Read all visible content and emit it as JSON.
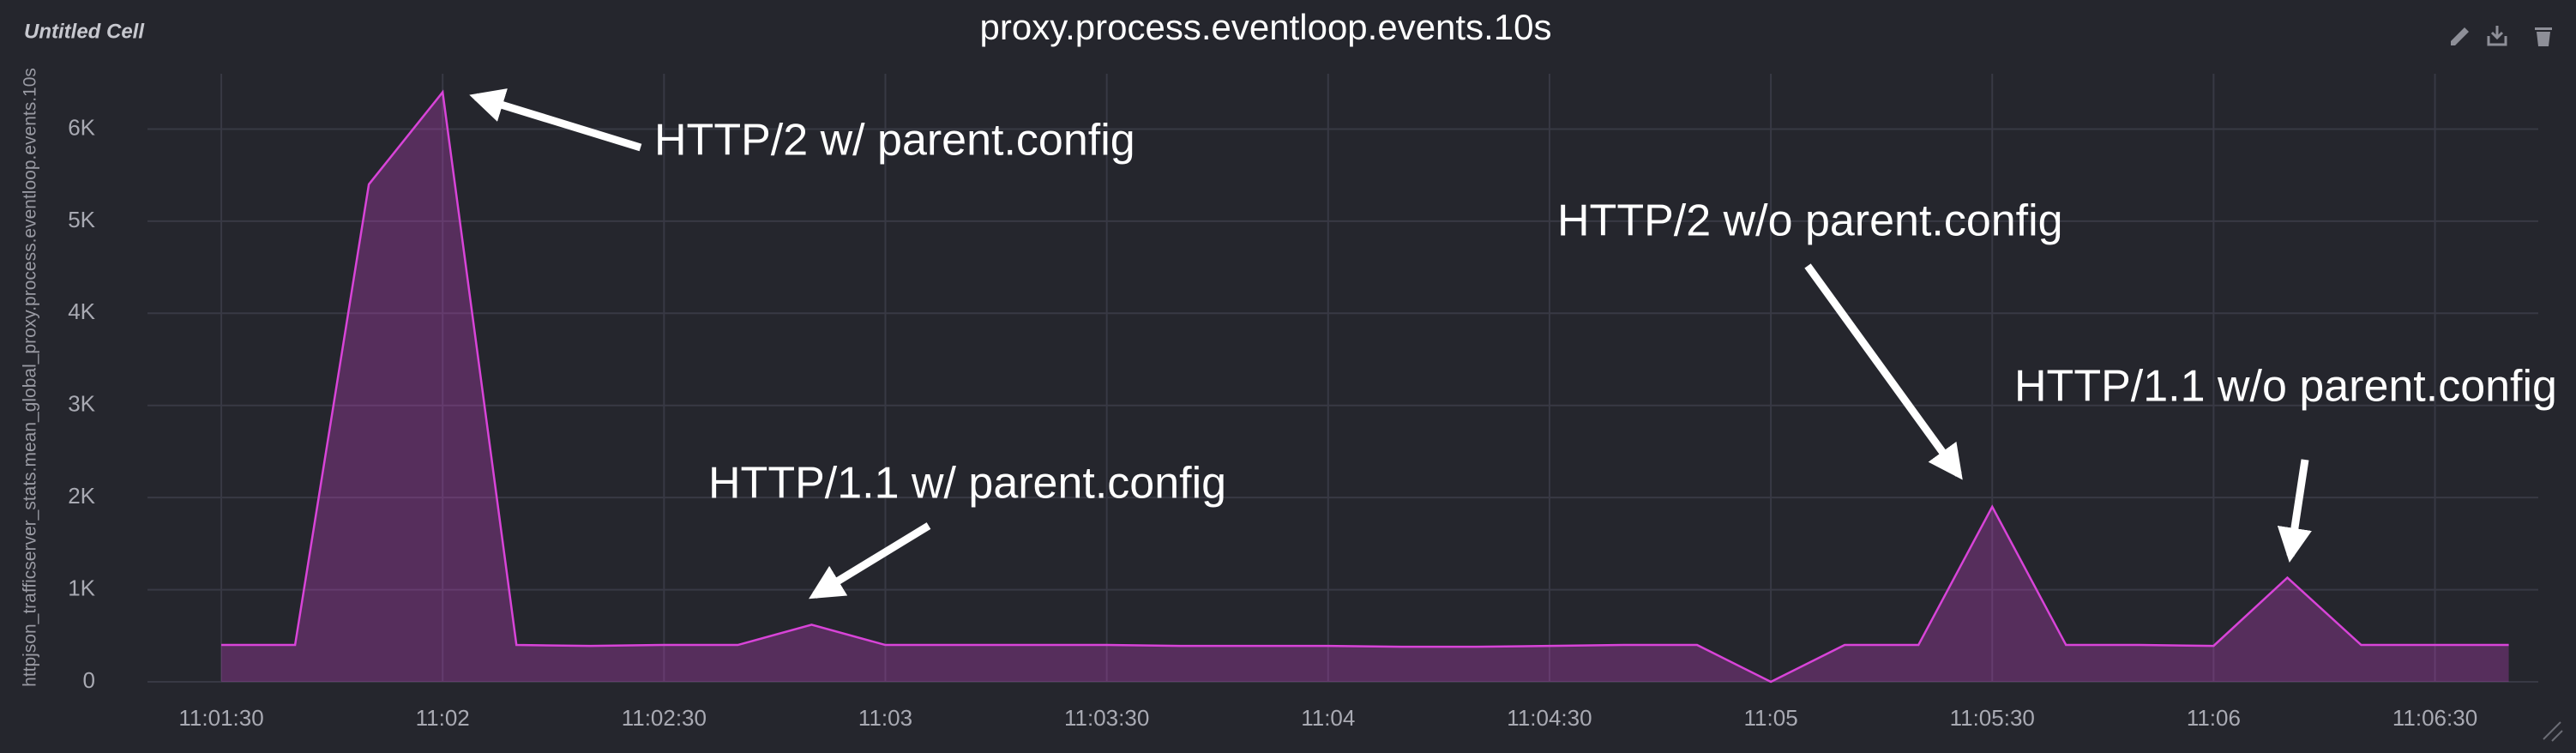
{
  "cell_title": "Untitled Cell",
  "chart_data": {
    "type": "area",
    "title": "proxy.process.eventloop.events.10s",
    "y_label": "httpjson_trafficserver_stats.mean_global_proxy.process.eventloop.events.10s",
    "x": [
      "11:01:30",
      "11:01:40",
      "11:01:50",
      "11:02:00",
      "11:02:10",
      "11:02:20",
      "11:02:30",
      "11:02:40",
      "11:02:50",
      "11:03:00",
      "11:03:10",
      "11:03:20",
      "11:03:30",
      "11:03:40",
      "11:03:50",
      "11:04:00",
      "11:04:10",
      "11:04:20",
      "11:04:30",
      "11:04:40",
      "11:04:50",
      "11:05:00",
      "11:05:10",
      "11:05:20",
      "11:05:30",
      "11:05:40",
      "11:05:50",
      "11:06:00",
      "11:06:10",
      "11:06:20",
      "11:06:30",
      "11:06:40"
    ],
    "series": [
      {
        "name": "mean",
        "color": "#d844d8",
        "values": [
          400,
          400,
          5400,
          6400,
          400,
          390,
          400,
          400,
          620,
          400,
          400,
          400,
          400,
          390,
          390,
          390,
          380,
          380,
          390,
          400,
          400,
          0,
          400,
          400,
          1900,
          400,
          400,
          390,
          1130,
          400,
          400,
          400
        ]
      }
    ],
    "xlim": [
      "11:01:20",
      "11:06:44"
    ],
    "xticks": [
      "11:01:30",
      "11:02",
      "11:02:30",
      "11:03",
      "11:03:30",
      "11:04",
      "11:04:30",
      "11:05",
      "11:05:30",
      "11:06",
      "11:06:30"
    ],
    "ylim": [
      0,
      6600
    ],
    "yticks": [
      0,
      {
        "value": 1000,
        "label": "1K"
      },
      {
        "value": 2000,
        "label": "2K"
      },
      {
        "value": 3000,
        "label": "3K"
      },
      {
        "value": 4000,
        "label": "4K"
      },
      {
        "value": 5000,
        "label": "5K"
      },
      {
        "value": 6000,
        "label": "6K"
      }
    ],
    "grid": true,
    "annotations": [
      "HTTP/2 w/ parent.config",
      "HTTP/1.1 w/ parent.config",
      "HTTP/2 w/o parent.config",
      "HTTP/1.1 w/o parent.config"
    ]
  }
}
